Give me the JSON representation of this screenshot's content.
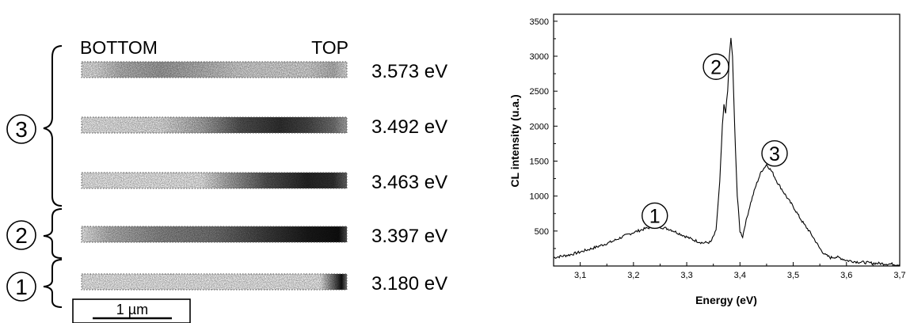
{
  "left_panel": {
    "header_left": "BOTTOM",
    "header_right": "TOP",
    "strips": [
      {
        "energy": "3.573 eV",
        "group": 3,
        "profile": [
          [
            0.05,
            0.05
          ],
          [
            0.15,
            0.25
          ],
          [
            0.3,
            0.35
          ],
          [
            0.45,
            0.25
          ],
          [
            0.6,
            0.12
          ],
          [
            0.85,
            0.1
          ],
          [
            0.95,
            0.25
          ],
          [
            1.0,
            0.05
          ]
        ]
      },
      {
        "energy": "3.492 eV",
        "group": 3,
        "profile": [
          [
            0.0,
            0.0
          ],
          [
            0.3,
            0.05
          ],
          [
            0.45,
            0.3
          ],
          [
            0.6,
            0.7
          ],
          [
            0.75,
            0.85
          ],
          [
            0.85,
            0.75
          ],
          [
            0.95,
            0.55
          ],
          [
            1.0,
            0.3
          ]
        ]
      },
      {
        "energy": "3.463 eV",
        "group": 3,
        "profile": [
          [
            0.0,
            0.0
          ],
          [
            0.45,
            0.0
          ],
          [
            0.55,
            0.3
          ],
          [
            0.7,
            0.7
          ],
          [
            0.85,
            0.9
          ],
          [
            0.95,
            0.85
          ],
          [
            1.0,
            0.6
          ]
        ]
      },
      {
        "energy": "3.397 eV",
        "group": 2,
        "profile": [
          [
            0.0,
            0.0
          ],
          [
            0.1,
            0.25
          ],
          [
            0.3,
            0.45
          ],
          [
            0.5,
            0.55
          ],
          [
            0.7,
            0.8
          ],
          [
            0.85,
            0.95
          ],
          [
            0.97,
            1.0
          ],
          [
            1.0,
            0.7
          ]
        ]
      },
      {
        "energy": "3.180 eV",
        "group": 1,
        "profile": [
          [
            0.0,
            0.0
          ],
          [
            0.9,
            0.0
          ],
          [
            0.95,
            0.6
          ],
          [
            0.98,
            1.0
          ],
          [
            1.0,
            0.5
          ]
        ]
      }
    ],
    "groups": [
      "3",
      "2",
      "1"
    ],
    "scale_bar_label": "1 µm"
  },
  "chart_data": {
    "type": "line",
    "xlabel": "Energy (eV)",
    "ylabel": "CL intensity (u.a.)",
    "xlim": [
      3.05,
      3.7
    ],
    "ylim": [
      0,
      3600
    ],
    "x_ticks": [
      3.1,
      3.2,
      3.3,
      3.4,
      3.5,
      3.6,
      3.7
    ],
    "x_tick_labels": [
      "3,1",
      "3,2",
      "3,3",
      "3,4",
      "3,5",
      "3,6",
      "3,7"
    ],
    "y_ticks": [
      500,
      1000,
      1500,
      2000,
      2500,
      3000,
      3500
    ],
    "y_tick_labels": [
      "500",
      "1000",
      "1500",
      "2000",
      "2500",
      "3000",
      "3500"
    ],
    "grid": false,
    "annotations": [
      {
        "text": "1",
        "x": 3.24,
        "y": 720
      },
      {
        "text": "2",
        "x": 3.355,
        "y": 2850
      },
      {
        "text": "3",
        "x": 3.465,
        "y": 1610
      }
    ],
    "series": [
      {
        "points": [
          [
            3.05,
            120
          ],
          [
            3.08,
            160
          ],
          [
            3.1,
            200
          ],
          [
            3.13,
            270
          ],
          [
            3.16,
            350
          ],
          [
            3.18,
            420
          ],
          [
            3.2,
            480
          ],
          [
            3.22,
            530
          ],
          [
            3.24,
            570
          ],
          [
            3.25,
            560
          ],
          [
            3.27,
            520
          ],
          [
            3.29,
            450
          ],
          [
            3.31,
            380
          ],
          [
            3.33,
            330
          ],
          [
            3.345,
            340
          ],
          [
            3.355,
            500
          ],
          [
            3.362,
            1200
          ],
          [
            3.367,
            2000
          ],
          [
            3.37,
            2300
          ],
          [
            3.373,
            2200
          ],
          [
            3.377,
            2500
          ],
          [
            3.38,
            3000
          ],
          [
            3.383,
            3250
          ],
          [
            3.386,
            3000
          ],
          [
            3.39,
            2000
          ],
          [
            3.395,
            1000
          ],
          [
            3.4,
            500
          ],
          [
            3.405,
            420
          ],
          [
            3.41,
            600
          ],
          [
            3.42,
            900
          ],
          [
            3.43,
            1150
          ],
          [
            3.44,
            1350
          ],
          [
            3.45,
            1450
          ],
          [
            3.46,
            1350
          ],
          [
            3.47,
            1200
          ],
          [
            3.48,
            1080
          ],
          [
            3.49,
            960
          ],
          [
            3.5,
            850
          ],
          [
            3.51,
            720
          ],
          [
            3.52,
            600
          ],
          [
            3.53,
            500
          ],
          [
            3.54,
            380
          ],
          [
            3.55,
            250
          ],
          [
            3.56,
            160
          ],
          [
            3.57,
            120
          ],
          [
            3.58,
            130
          ],
          [
            3.59,
            110
          ],
          [
            3.6,
            80
          ],
          [
            3.62,
            60
          ],
          [
            3.65,
            40
          ],
          [
            3.68,
            30
          ],
          [
            3.7,
            20
          ]
        ]
      }
    ]
  }
}
